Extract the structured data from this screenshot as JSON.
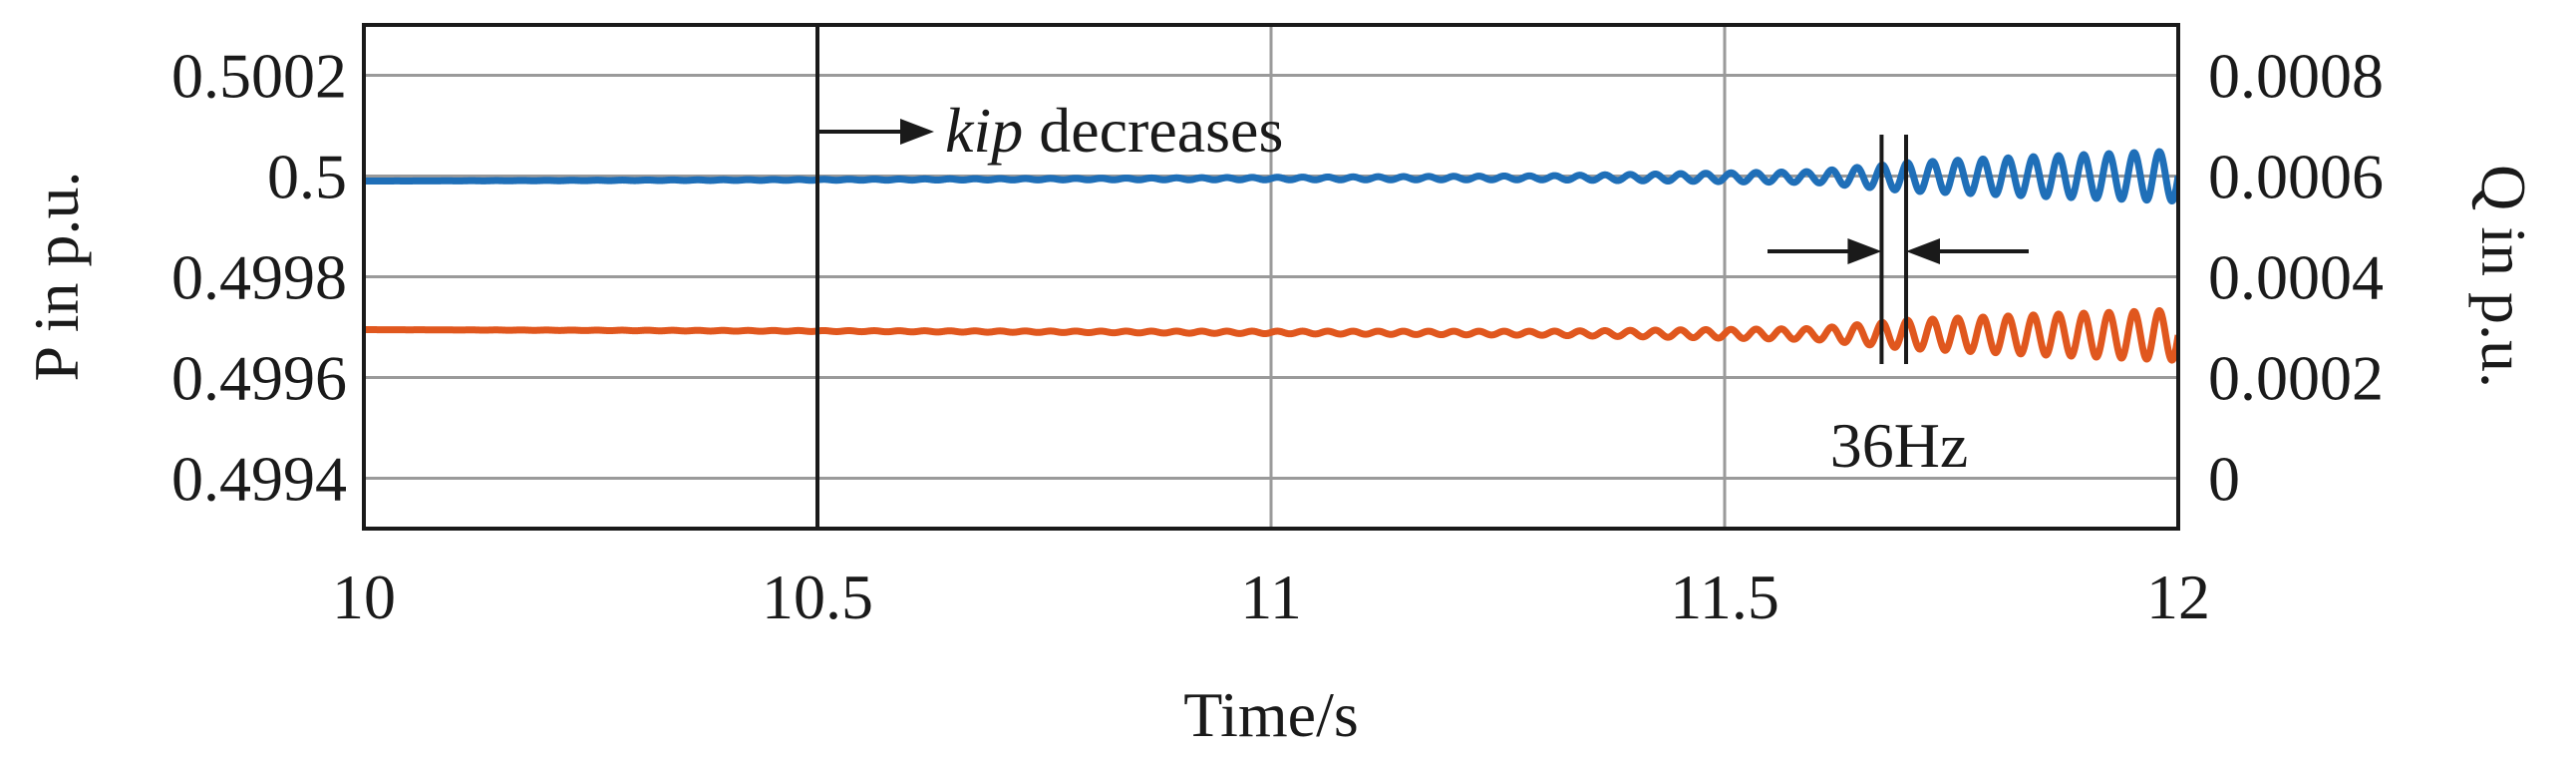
{
  "chart_data": {
    "type": "line",
    "title": "",
    "xlabel": "Time/s",
    "ylabel_left": "P in p.u.",
    "ylabel_right": "Q in p.u.",
    "xlim": [
      10,
      12
    ],
    "ylim_left": [
      0.4993,
      0.5003
    ],
    "ylim_right": [
      -0.0001,
      0.0009
    ],
    "xticks": [
      10,
      10.5,
      11,
      11.5,
      12
    ],
    "xtick_labels": [
      "10",
      "10.5",
      "11",
      "11.5",
      "12"
    ],
    "yticks_left": [
      0.4994,
      0.4996,
      0.4998,
      0.5,
      0.5002
    ],
    "ytick_labels_left": [
      "0.4994",
      "0.4996",
      "0.4998",
      "0.5",
      "0.5002"
    ],
    "yticks_right": [
      0,
      0.0002,
      0.0004,
      0.0006,
      0.0008
    ],
    "ytick_labels_right": [
      "0",
      "0.0002",
      "0.0004",
      "0.0006",
      "0.0008"
    ],
    "grid": true,
    "series": [
      {
        "name": "P",
        "axis": "left",
        "color": "#1f6fb8",
        "base": 0.49999,
        "drift": 1e-05,
        "oscillation_hz": 36,
        "amplitude_points": [
          [
            10,
            0
          ],
          [
            10.8,
            1.5e-06
          ],
          [
            11.3,
            4e-06
          ],
          [
            11.6,
            1.1e-05
          ],
          [
            11.7,
            2.8e-05
          ],
          [
            11.85,
            4e-05
          ],
          [
            12,
            5e-05
          ]
        ]
      },
      {
        "name": "Q",
        "axis": "right",
        "color": "#e0571e",
        "base": 0.000295,
        "drift": -1.1e-05,
        "oscillation_hz": 36,
        "amplitude_points": [
          [
            10,
            0
          ],
          [
            10.8,
            1.5e-06
          ],
          [
            11.3,
            4e-06
          ],
          [
            11.6,
            1.1e-05
          ],
          [
            11.7,
            2.8e-05
          ],
          [
            11.85,
            4e-05
          ],
          [
            12,
            5e-05
          ]
        ]
      }
    ],
    "event_line_x": 10.5,
    "annotations": {
      "event_italic": "kip",
      "event_rest": " decreases",
      "period_label": "36Hz",
      "period_markers_x": [
        11.673,
        11.7
      ]
    }
  }
}
